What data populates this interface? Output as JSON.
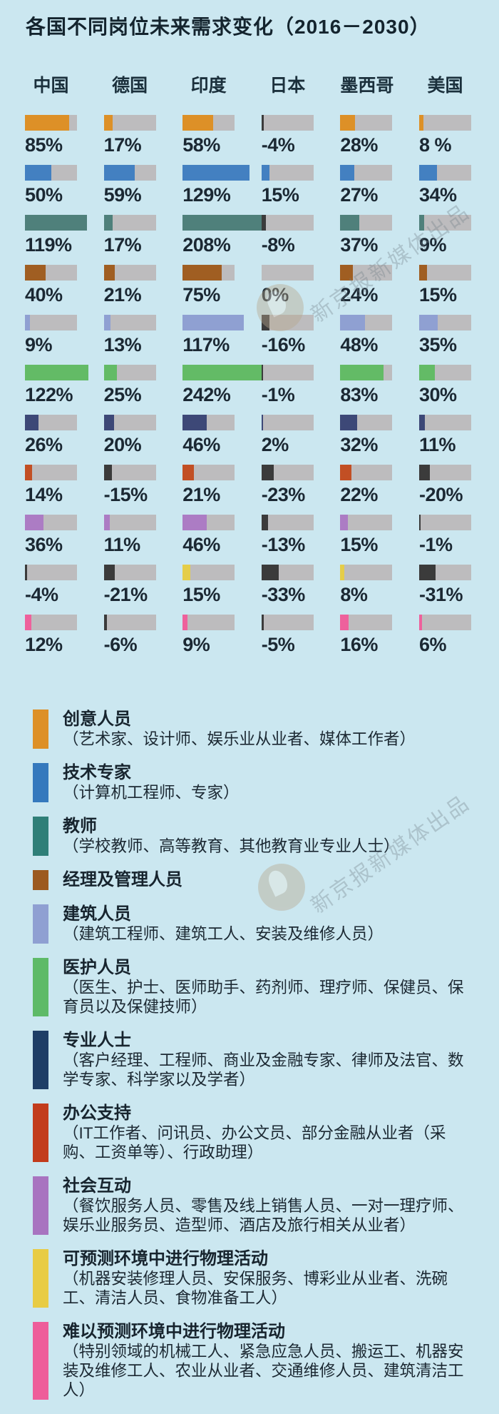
{
  "title": "各国不同岗位未来需求变化（2016－2030）",
  "watermark": {
    "text": "新京报新媒体出品"
  },
  "colors": {
    "background": "#CBE7F0",
    "text": "#17242E",
    "bar_track": "#BDBCBE",
    "negative_bar": "#3B3B3B",
    "watermark_text": "#75828A",
    "watermark_logo": "#B7A88E"
  },
  "chart_data": {
    "type": "bar",
    "title": "各国不同岗位未来需求变化（2016－2030）",
    "unit": "%",
    "note": "colored segment length = percent of full track width (100% = full bar), negatives drawn near-black",
    "countries": [
      "中国",
      "德国",
      "印度",
      "日本",
      "墨西哥",
      "美国"
    ],
    "series": [
      {
        "name": "创意人员",
        "color": "#DD9027",
        "values": [
          85,
          17,
          58,
          -4,
          28,
          8
        ],
        "labels": [
          "85%",
          "17%",
          "58%",
          "-4%",
          "28%",
          "8 %"
        ]
      },
      {
        "name": "技术专家",
        "color": "#4380C1",
        "values": [
          50,
          59,
          129,
          15,
          27,
          34
        ],
        "labels": [
          "50%",
          "59%",
          "129%",
          "15%",
          "27%",
          "34%"
        ]
      },
      {
        "name": "教师",
        "color": "#4F807B",
        "values": [
          119,
          17,
          208,
          -8,
          37,
          9
        ],
        "labels": [
          "119%",
          "17%",
          "208%",
          "-8%",
          "37%",
          "9%"
        ]
      },
      {
        "name": "经理及管理人员",
        "color": "#A05E22",
        "values": [
          40,
          21,
          75,
          0,
          24,
          15
        ],
        "labels": [
          "40%",
          "21%",
          "75%",
          "0%",
          "24%",
          "15%"
        ]
      },
      {
        "name": "建筑人员",
        "color": "#8FA0D2",
        "values": [
          9,
          13,
          117,
          -16,
          48,
          35
        ],
        "labels": [
          "9%",
          "13%",
          "117%",
          "-16%",
          "48%",
          "35%"
        ]
      },
      {
        "name": "医护人员",
        "color": "#63BB66",
        "values": [
          122,
          25,
          242,
          -1,
          83,
          30
        ],
        "labels": [
          "122%",
          "25%",
          "242%",
          "-1%",
          "83%",
          "30%"
        ]
      },
      {
        "name": "专业人士",
        "color": "#3D4877",
        "values": [
          26,
          20,
          46,
          2,
          32,
          11
        ],
        "labels": [
          "26%",
          "20%",
          "46%",
          "2%",
          "32%",
          "11%"
        ]
      },
      {
        "name": "办公支持",
        "color": "#C24F24",
        "values": [
          14,
          -15,
          21,
          -23,
          22,
          -20
        ],
        "labels": [
          "14%",
          "-15%",
          "21%",
          "-23%",
          "22%",
          "-20%"
        ]
      },
      {
        "name": "社会互动",
        "color": "#AC7CC4",
        "values": [
          36,
          11,
          46,
          -13,
          15,
          -1
        ],
        "labels": [
          "36%",
          "11%",
          "46%",
          "-13%",
          "15%",
          "-1%"
        ]
      },
      {
        "name": "可预测环境中进行物理活动",
        "color": "#E5CD49",
        "values": [
          -4,
          -21,
          15,
          -33,
          8,
          -31
        ],
        "labels": [
          "-4%",
          "-21%",
          "15%",
          "-33%",
          "8%",
          "-31%"
        ]
      },
      {
        "name": "难以预测环境中进行物理活动",
        "color": "#EE619C",
        "values": [
          12,
          -6,
          9,
          -5,
          16,
          6
        ],
        "labels": [
          "12%",
          "-6%",
          "9%",
          "-5%",
          "16%",
          "6%"
        ]
      }
    ]
  },
  "legend": [
    {
      "name": "创意人员",
      "desc": "（艺术家、设计师、娱乐业从业者、媒体工作者）",
      "color": "#DD9027"
    },
    {
      "name": "技术专家",
      "desc": "（计算机工程师、专家）",
      "color": "#3579BD"
    },
    {
      "name": "教师",
      "desc": "（学校教师、高等教育、其他教育业专业人士）",
      "color": "#2F7F78"
    },
    {
      "name": "经理及管理人员",
      "desc": "",
      "color": "#9C5A20"
    },
    {
      "name": "建筑人员",
      "desc": "（建筑工程师、建筑工人、安装及维修人员）",
      "color": "#8FA0D2"
    },
    {
      "name": "医护人员",
      "desc": "（医生、护士、医师助手、药剂师、理疗师、保健员、保育员以及保健技师）",
      "color": "#5EBA68"
    },
    {
      "name": "专业人士",
      "desc": "（客户经理、工程师、商业及金融专家、律师及法官、数学专家、科学家以及学者）",
      "color": "#1E3E66"
    },
    {
      "name": "办公支持",
      "desc": "（IT工作者、问讯员、办公文员、部分金融从业者（采购、工资单等）、行政助理）",
      "color": "#C23C1C"
    },
    {
      "name": "社会互动",
      "desc": "（餐饮服务人员、零售及线上销售人员、一对一理疗师、娱乐业服务员、造型师、酒店及旅行相关从业者）",
      "color": "#A874C0"
    },
    {
      "name": "可预测环境中进行物理活动",
      "desc": "（机器安装修理人员、安保服务、博彩业从业者、洗碗工、清洁人员、食物准备工人）",
      "color": "#E8CC44"
    },
    {
      "name": "难以预测环境中进行物理活动",
      "desc": "（特别领域的机械工人、紧急应急人员、搬运工、机器安装及维修工人、农业从业者、交通维修人员、建筑清洁工人）",
      "color": "#EE5D9A"
    }
  ]
}
